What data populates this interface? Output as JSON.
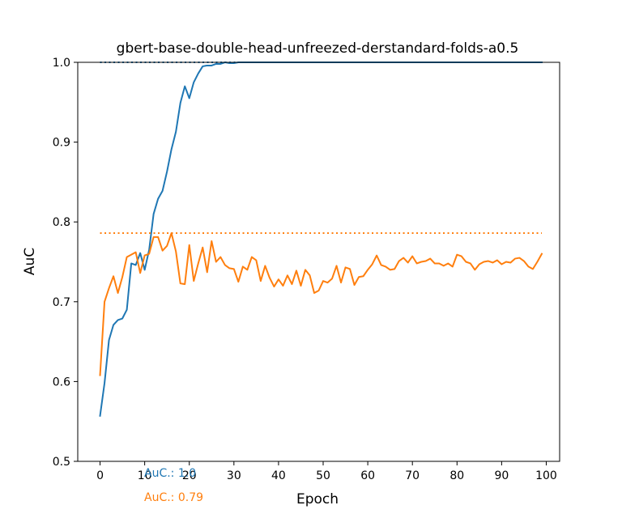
{
  "chart_data": {
    "type": "line",
    "title": "gbert-base-double-head-unfreezed-derstandard-folds-a0.5",
    "xlabel": "Epoch",
    "ylabel": "AuC",
    "xlim": [
      -5,
      103
    ],
    "ylim": [
      0.5,
      1.0
    ],
    "xticks": [
      0,
      10,
      20,
      30,
      40,
      50,
      60,
      70,
      80,
      90,
      100
    ],
    "yticks": [
      0.5,
      0.6,
      0.7,
      0.8,
      0.9,
      1.0
    ],
    "xtick_labels": [
      "0",
      "10",
      "20",
      "30",
      "40",
      "50",
      "60",
      "70",
      "80",
      "90",
      "100"
    ],
    "ytick_labels": [
      "0.5",
      "0.6",
      "0.7",
      "0.8",
      "0.9",
      "1.0"
    ],
    "grid": false,
    "series": [
      {
        "color": "#1f77b4",
        "values": [
          0.557,
          0.598,
          0.652,
          0.671,
          0.677,
          0.679,
          0.69,
          0.748,
          0.746,
          0.761,
          0.74,
          0.765,
          0.81,
          0.829,
          0.839,
          0.863,
          0.891,
          0.913,
          0.949,
          0.97,
          0.955,
          0.975,
          0.986,
          0.995,
          0.996,
          0.996,
          0.998,
          0.998,
          1.0,
          0.999,
          0.999,
          1.0,
          1.0,
          1.0,
          1.0,
          1.0,
          1.0,
          1.0,
          1.0,
          1.0,
          1.0,
          1.0,
          1.0,
          1.0,
          1.0,
          1.0,
          1.0,
          1.0,
          1.0,
          1.0,
          1.0,
          1.0,
          1.0,
          1.0,
          1.0,
          1.0,
          1.0,
          1.0,
          1.0,
          1.0,
          1.0,
          1.0,
          1.0,
          1.0,
          1.0,
          1.0,
          1.0,
          1.0,
          1.0,
          1.0,
          1.0,
          1.0,
          1.0,
          1.0,
          1.0,
          1.0,
          1.0,
          1.0,
          1.0,
          1.0,
          1.0,
          1.0,
          1.0,
          1.0,
          1.0,
          1.0,
          1.0,
          1.0,
          1.0,
          1.0,
          1.0,
          1.0,
          1.0,
          1.0,
          1.0,
          1.0,
          1.0,
          1.0,
          1.0,
          1.0
        ],
        "reference_line": 1.0
      },
      {
        "color": "#ff7f0e",
        "values": [
          0.608,
          0.7,
          0.717,
          0.732,
          0.711,
          0.731,
          0.756,
          0.759,
          0.762,
          0.736,
          0.758,
          0.76,
          0.781,
          0.781,
          0.764,
          0.77,
          0.786,
          0.763,
          0.723,
          0.722,
          0.771,
          0.726,
          0.748,
          0.768,
          0.737,
          0.776,
          0.75,
          0.756,
          0.746,
          0.742,
          0.741,
          0.725,
          0.744,
          0.74,
          0.756,
          0.752,
          0.726,
          0.745,
          0.73,
          0.719,
          0.728,
          0.72,
          0.733,
          0.722,
          0.739,
          0.72,
          0.74,
          0.733,
          0.711,
          0.714,
          0.726,
          0.724,
          0.729,
          0.745,
          0.724,
          0.743,
          0.741,
          0.721,
          0.731,
          0.732,
          0.74,
          0.747,
          0.758,
          0.746,
          0.744,
          0.74,
          0.741,
          0.751,
          0.755,
          0.749,
          0.757,
          0.748,
          0.75,
          0.751,
          0.754,
          0.748,
          0.748,
          0.745,
          0.748,
          0.744,
          0.759,
          0.757,
          0.75,
          0.748,
          0.74,
          0.747,
          0.75,
          0.751,
          0.749,
          0.752,
          0.747,
          0.75,
          0.749,
          0.754,
          0.755,
          0.751,
          0.744,
          0.741,
          0.75,
          0.76
        ],
        "reference_line": 0.786
      }
    ],
    "annotations": [
      {
        "text": "AuC.: 1.0",
        "color": "#1f77b4"
      },
      {
        "text": "AuC.: 0.79",
        "color": "#ff7f0e"
      }
    ]
  }
}
